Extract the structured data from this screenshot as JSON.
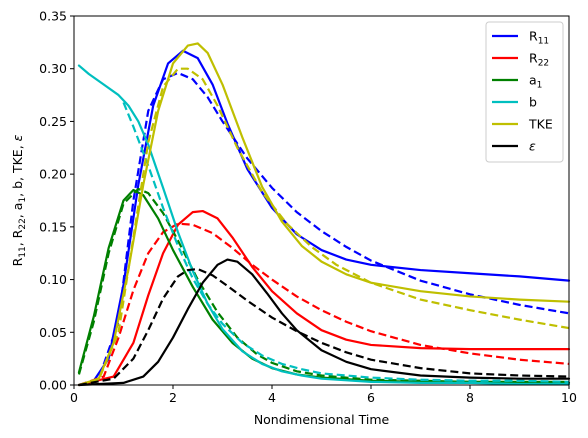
{
  "chart_data": {
    "type": "line",
    "xlabel": "Nondimensional Time",
    "ylabel": "R11, R22, a1, b, TKE, ε",
    "xlim": [
      0,
      10
    ],
    "ylim": [
      0,
      0.35
    ],
    "xticks": [
      0,
      2,
      4,
      6,
      8,
      10
    ],
    "yticks": [
      0.0,
      0.05,
      0.1,
      0.15,
      0.2,
      0.25,
      0.3,
      0.35
    ],
    "xtick_labels": [
      "0",
      "2",
      "4",
      "6",
      "8",
      "10"
    ],
    "ytick_labels": [
      "0.00",
      "0.05",
      "0.10",
      "0.15",
      "0.20",
      "0.25",
      "0.30",
      "0.35"
    ],
    "grid": false,
    "legend_position": "top-right",
    "legend": [
      {
        "label": "R",
        "sub": "11",
        "color": "#0000ff"
      },
      {
        "label": "R",
        "sub": "22",
        "color": "#ff0000"
      },
      {
        "label": "a",
        "sub": "1",
        "color": "#008000"
      },
      {
        "label": "b",
        "sub": "",
        "color": "#00bfbf"
      },
      {
        "label": "TKE",
        "sub": "",
        "color": "#bfbf00"
      },
      {
        "label": "ε",
        "sub": "",
        "color": "#000000"
      }
    ],
    "series": [
      {
        "key": "R11-solid",
        "color": "#0000ff",
        "dash": false,
        "x": [
          0.1,
          0.4,
          0.7,
          1.0,
          1.3,
          1.6,
          1.9,
          2.2,
          2.5,
          2.8,
          3.1,
          3.5,
          4.0,
          4.5,
          5.0,
          5.5,
          6.0,
          7.0,
          8.0,
          9.0,
          10.0
        ],
        "y": [
          0.0,
          0.004,
          0.025,
          0.095,
          0.19,
          0.265,
          0.305,
          0.317,
          0.31,
          0.285,
          0.248,
          0.205,
          0.168,
          0.143,
          0.128,
          0.119,
          0.114,
          0.109,
          0.106,
          0.103,
          0.099
        ]
      },
      {
        "key": "R11-dashed",
        "color": "#0000ff",
        "dash": true,
        "x": [
          0.1,
          0.5,
          0.9,
          1.2,
          1.5,
          1.8,
          2.1,
          2.4,
          2.7,
          3.0,
          3.5,
          4.0,
          4.5,
          5.0,
          5.5,
          6.0,
          7.0,
          8.0,
          9.0,
          10.0
        ],
        "y": [
          0.0,
          0.006,
          0.06,
          0.175,
          0.26,
          0.29,
          0.296,
          0.29,
          0.273,
          0.25,
          0.215,
          0.187,
          0.164,
          0.146,
          0.131,
          0.118,
          0.099,
          0.086,
          0.076,
          0.068
        ]
      },
      {
        "key": "R22-solid",
        "color": "#ff0000",
        "dash": false,
        "x": [
          0.1,
          0.8,
          1.2,
          1.5,
          1.8,
          2.1,
          2.4,
          2.6,
          2.9,
          3.2,
          3.6,
          4.0,
          4.5,
          5.0,
          5.5,
          6.0,
          7.0,
          8.0,
          9.0,
          10.0
        ],
        "y": [
          0.0,
          0.008,
          0.04,
          0.085,
          0.125,
          0.152,
          0.164,
          0.165,
          0.158,
          0.14,
          0.112,
          0.089,
          0.068,
          0.052,
          0.043,
          0.038,
          0.035,
          0.034,
          0.034,
          0.034
        ]
      },
      {
        "key": "R22-dashed",
        "color": "#ff0000",
        "dash": true,
        "x": [
          0.1,
          0.6,
          0.9,
          1.2,
          1.5,
          1.8,
          2.1,
          2.4,
          2.8,
          3.2,
          3.6,
          4.0,
          4.5,
          5.0,
          5.5,
          6.0,
          7.0,
          8.0,
          9.0,
          10.0
        ],
        "y": [
          0.0,
          0.008,
          0.045,
          0.09,
          0.125,
          0.145,
          0.153,
          0.152,
          0.144,
          0.13,
          0.114,
          0.1,
          0.084,
          0.071,
          0.06,
          0.051,
          0.038,
          0.03,
          0.024,
          0.02
        ]
      },
      {
        "key": "a1-solid",
        "color": "#008000",
        "dash": false,
        "x": [
          0.1,
          0.4,
          0.7,
          1.0,
          1.2,
          1.4,
          1.7,
          2.0,
          2.4,
          2.8,
          3.2,
          3.6,
          4.0,
          4.5,
          5.0,
          6.0,
          7.0,
          8.0,
          9.0,
          10.0
        ],
        "y": [
          0.012,
          0.065,
          0.13,
          0.175,
          0.185,
          0.18,
          0.158,
          0.128,
          0.093,
          0.062,
          0.04,
          0.025,
          0.016,
          0.01,
          0.007,
          0.004,
          0.003,
          0.003,
          0.002,
          0.002
        ]
      },
      {
        "key": "a1-dashed",
        "color": "#008000",
        "dash": true,
        "x": [
          0.1,
          0.4,
          0.7,
          1.0,
          1.3,
          1.5,
          1.8,
          2.1,
          2.5,
          2.9,
          3.3,
          3.7,
          4.0,
          4.5,
          5.0,
          6.0,
          7.0,
          8.0,
          9.0,
          10.0
        ],
        "y": [
          0.01,
          0.06,
          0.125,
          0.172,
          0.186,
          0.182,
          0.163,
          0.137,
          0.1,
          0.069,
          0.045,
          0.029,
          0.021,
          0.013,
          0.009,
          0.005,
          0.004,
          0.003,
          0.003,
          0.003
        ]
      },
      {
        "key": "b-solid",
        "color": "#00bfbf",
        "dash": false,
        "x": [
          0.1,
          0.3,
          0.6,
          0.9,
          1.1,
          1.3,
          1.5,
          1.8,
          2.1,
          2.4,
          2.7,
          3.0,
          3.4,
          3.8,
          4.2,
          4.6,
          5.0,
          6.0,
          7.0,
          8.0,
          9.0,
          10.0
        ],
        "y": [
          0.303,
          0.295,
          0.285,
          0.275,
          0.265,
          0.25,
          0.228,
          0.187,
          0.145,
          0.108,
          0.077,
          0.053,
          0.032,
          0.02,
          0.013,
          0.009,
          0.006,
          0.003,
          0.002,
          0.002,
          0.001,
          0.001
        ]
      },
      {
        "key": "b-dashed",
        "color": "#00bfbf",
        "dash": true,
        "x": [
          1.0,
          1.2,
          1.5,
          1.8,
          2.1,
          2.4,
          2.7,
          3.0,
          3.4,
          3.8,
          4.2,
          4.6,
          5.0,
          6.0,
          7.0,
          8.0,
          9.0,
          10.0
        ],
        "y": [
          0.268,
          0.245,
          0.208,
          0.168,
          0.132,
          0.101,
          0.077,
          0.058,
          0.04,
          0.028,
          0.02,
          0.015,
          0.011,
          0.007,
          0.005,
          0.004,
          0.004,
          0.003
        ]
      },
      {
        "key": "TKE-solid",
        "color": "#bfbf00",
        "dash": false,
        "x": [
          0.1,
          0.5,
          0.8,
          1.1,
          1.4,
          1.7,
          2.0,
          2.3,
          2.5,
          2.7,
          3.0,
          3.4,
          3.8,
          4.2,
          4.6,
          5.0,
          5.5,
          6.0,
          7.0,
          8.0,
          9.0,
          10.0
        ],
        "y": [
          0.0,
          0.006,
          0.04,
          0.11,
          0.19,
          0.26,
          0.305,
          0.322,
          0.324,
          0.315,
          0.285,
          0.235,
          0.188,
          0.155,
          0.132,
          0.117,
          0.105,
          0.097,
          0.089,
          0.084,
          0.081,
          0.079
        ]
      },
      {
        "key": "TKE-dashed",
        "color": "#bfbf00",
        "dash": true,
        "x": [
          0.1,
          0.5,
          0.9,
          1.2,
          1.5,
          1.8,
          2.1,
          2.3,
          2.6,
          2.9,
          3.3,
          3.8,
          4.3,
          4.8,
          5.3,
          6.0,
          7.0,
          8.0,
          9.0,
          10.0
        ],
        "y": [
          0.0,
          0.005,
          0.05,
          0.14,
          0.23,
          0.283,
          0.3,
          0.3,
          0.29,
          0.265,
          0.225,
          0.183,
          0.153,
          0.131,
          0.114,
          0.097,
          0.081,
          0.071,
          0.062,
          0.054
        ]
      },
      {
        "key": "eps-solid",
        "color": "#000000",
        "dash": false,
        "x": [
          0.1,
          1.0,
          1.4,
          1.7,
          2.0,
          2.3,
          2.6,
          2.9,
          3.1,
          3.3,
          3.6,
          3.9,
          4.2,
          4.5,
          5.0,
          5.5,
          6.0,
          7.0,
          8.0,
          9.0,
          10.0
        ],
        "y": [
          0.0,
          0.002,
          0.008,
          0.022,
          0.045,
          0.072,
          0.097,
          0.114,
          0.119,
          0.117,
          0.105,
          0.087,
          0.068,
          0.052,
          0.033,
          0.022,
          0.015,
          0.009,
          0.007,
          0.006,
          0.006
        ]
      },
      {
        "key": "eps-dashed",
        "color": "#000000",
        "dash": true,
        "x": [
          0.1,
          0.8,
          1.2,
          1.5,
          1.8,
          2.1,
          2.3,
          2.5,
          2.8,
          3.1,
          3.5,
          4.0,
          4.5,
          5.0,
          5.5,
          6.0,
          7.0,
          8.0,
          9.0,
          10.0
        ],
        "y": [
          0.0,
          0.006,
          0.025,
          0.052,
          0.082,
          0.103,
          0.109,
          0.11,
          0.104,
          0.094,
          0.08,
          0.064,
          0.051,
          0.04,
          0.031,
          0.024,
          0.016,
          0.011,
          0.009,
          0.008
        ]
      }
    ]
  }
}
